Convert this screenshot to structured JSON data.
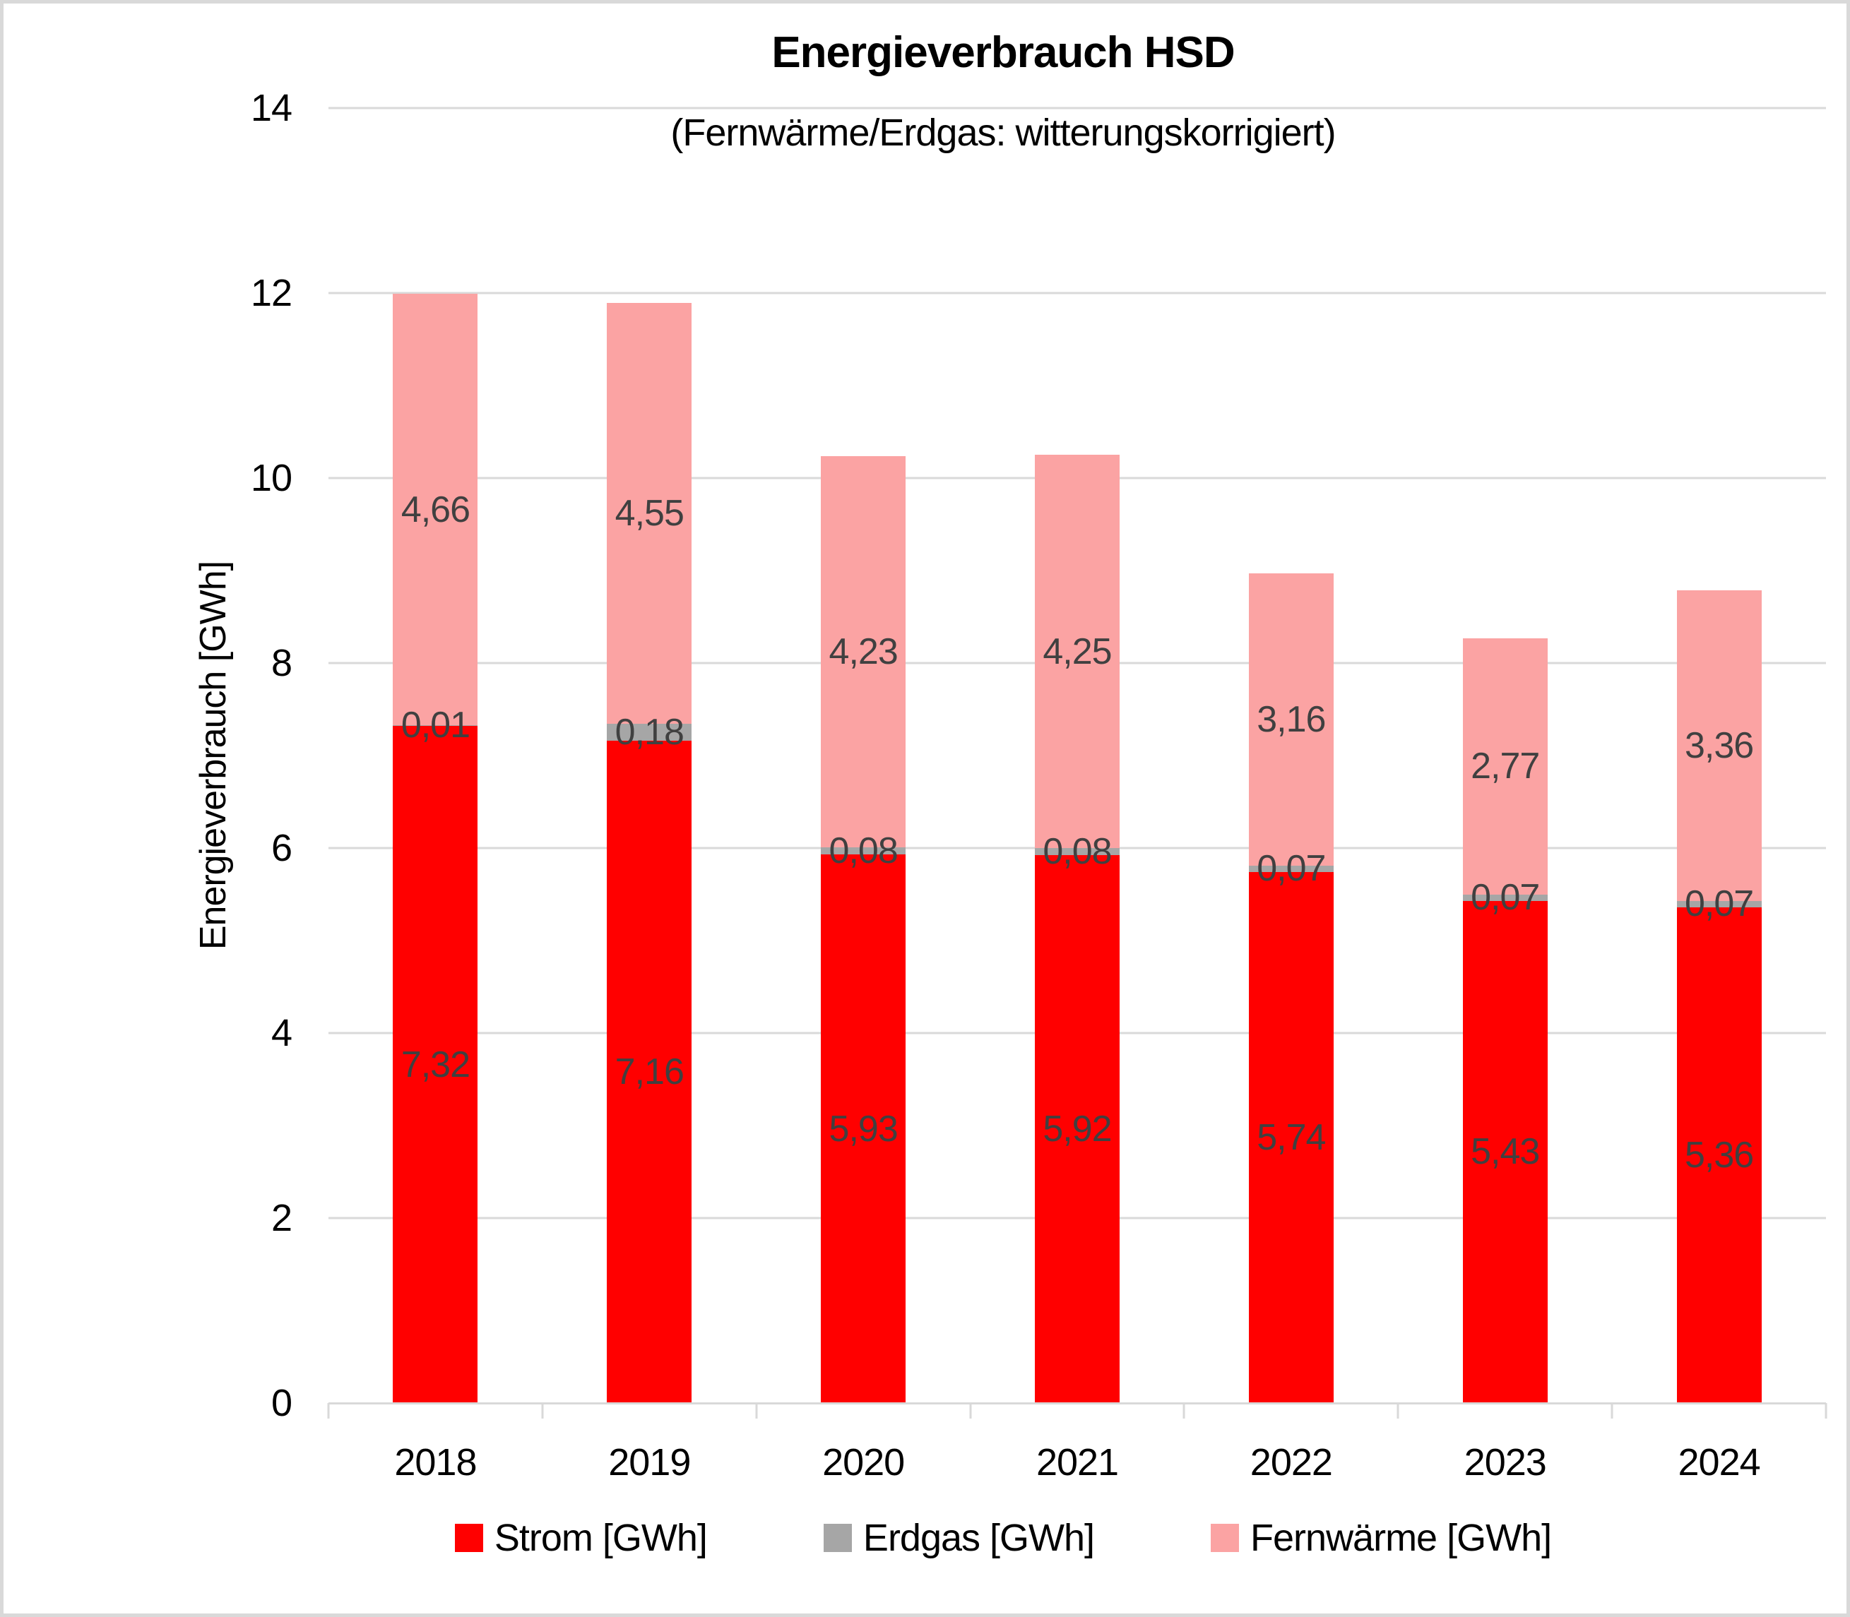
{
  "title": "Energieverbrauch HSD",
  "subtitle": "(Fernwärme/Erdgas: witterungskorrigiert)",
  "chart_data": {
    "type": "bar",
    "stacked": true,
    "title": "Energieverbrauch HSD",
    "subtitle": "(Fernwärme/Erdgas: witterungskorrigiert)",
    "categories": [
      "2018",
      "2019",
      "2020",
      "2021",
      "2022",
      "2023",
      "2024"
    ],
    "series": [
      {
        "name": "Strom [GWh]",
        "color": "#ff0000",
        "values": [
          7.32,
          7.16,
          5.93,
          5.92,
          5.74,
          5.43,
          5.36
        ],
        "labels": [
          "7,32",
          "7,16",
          "5,93",
          "5,92",
          "5,74",
          "5,43",
          "5,36"
        ]
      },
      {
        "name": "Erdgas [GWh]",
        "color": "#a6a6a6",
        "values": [
          0.01,
          0.18,
          0.08,
          0.08,
          0.07,
          0.07,
          0.07
        ],
        "labels": [
          "0,01",
          "0,18",
          "0,08",
          "0,08",
          "0,07",
          "0,07",
          "0,07"
        ]
      },
      {
        "name": "Fernwärme [GWh]",
        "color": "#fba3a3",
        "values": [
          4.66,
          4.55,
          4.23,
          4.25,
          3.16,
          2.77,
          3.36
        ],
        "labels": [
          "4,66",
          "4,55",
          "4,23",
          "4,25",
          "3,16",
          "2,77",
          "3,36"
        ]
      }
    ],
    "ylabel": "Energieverbrauch [GWh]",
    "xlabel": "",
    "ylim": [
      0,
      14
    ],
    "ytick_step": 2,
    "yticks": [
      0,
      2,
      4,
      6,
      8,
      10,
      12,
      14
    ],
    "grid": true,
    "gridline_color": "#d9d9d9",
    "value_label_color": "#404040",
    "legend_position": "bottom"
  }
}
